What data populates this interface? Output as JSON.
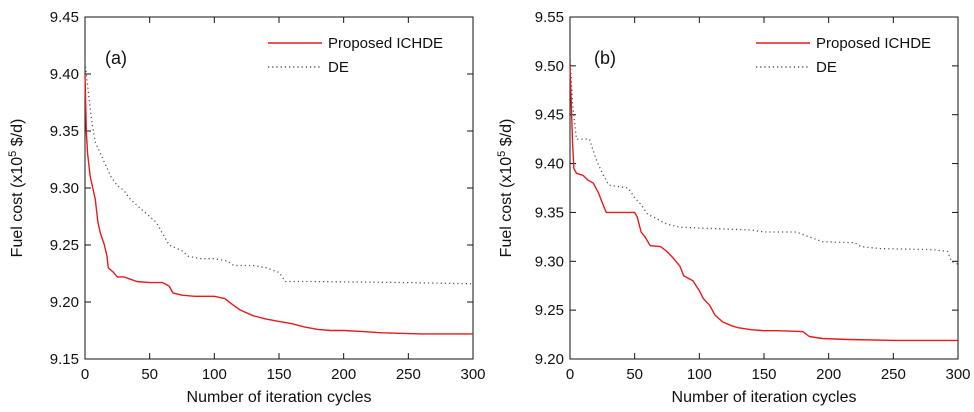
{
  "chart_data": [
    {
      "type": "line",
      "panel_label": "(a)",
      "xlabel": "Number of iteration cycles",
      "ylabel_main": "Fuel cost (x10",
      "ylabel_sup": "5",
      "ylabel_tail": " $/d)",
      "xlim": [
        0,
        300
      ],
      "ylim": [
        9.15,
        9.45
      ],
      "xticks": [
        0,
        50,
        100,
        150,
        200,
        250,
        300
      ],
      "yticks": [
        9.15,
        9.2,
        9.25,
        9.3,
        9.35,
        9.4,
        9.45
      ],
      "ytick_labels": [
        "9.15",
        "9.20",
        "9.25",
        "9.30",
        "9.35",
        "9.40",
        "9.45"
      ],
      "grid": false,
      "legend_position": "top-right",
      "series": [
        {
          "name": "Proposed ICHDE",
          "color": "#e8191b",
          "style": "solid",
          "points": [
            [
              0,
              9.4
            ],
            [
              1,
              9.35
            ],
            [
              2,
              9.33
            ],
            [
              4,
              9.31
            ],
            [
              6,
              9.3
            ],
            [
              8,
              9.29
            ],
            [
              10,
              9.27
            ],
            [
              12,
              9.26
            ],
            [
              15,
              9.25
            ],
            [
              17,
              9.24
            ],
            [
              18,
              9.23
            ],
            [
              20,
              9.228
            ],
            [
              22,
              9.226
            ],
            [
              25,
              9.222
            ],
            [
              30,
              9.222
            ],
            [
              35,
              9.22
            ],
            [
              40,
              9.218
            ],
            [
              50,
              9.217
            ],
            [
              60,
              9.217
            ],
            [
              65,
              9.214
            ],
            [
              68,
              9.208
            ],
            [
              75,
              9.206
            ],
            [
              85,
              9.205
            ],
            [
              100,
              9.205
            ],
            [
              108,
              9.203
            ],
            [
              115,
              9.197
            ],
            [
              120,
              9.193
            ],
            [
              130,
              9.188
            ],
            [
              140,
              9.185
            ],
            [
              150,
              9.183
            ],
            [
              160,
              9.181
            ],
            [
              170,
              9.178
            ],
            [
              180,
              9.176
            ],
            [
              190,
              9.175
            ],
            [
              200,
              9.175
            ],
            [
              215,
              9.174
            ],
            [
              230,
              9.173
            ],
            [
              260,
              9.172
            ],
            [
              300,
              9.172
            ]
          ]
        },
        {
          "name": "DE",
          "color": "#555555",
          "style": "dotted",
          "points": [
            [
              0,
              9.41
            ],
            [
              3,
              9.38
            ],
            [
              5,
              9.36
            ],
            [
              8,
              9.34
            ],
            [
              12,
              9.33
            ],
            [
              16,
              9.32
            ],
            [
              20,
              9.31
            ],
            [
              25,
              9.302
            ],
            [
              30,
              9.298
            ],
            [
              35,
              9.29
            ],
            [
              40,
              9.285
            ],
            [
              50,
              9.275
            ],
            [
              55,
              9.27
            ],
            [
              60,
              9.26
            ],
            [
              65,
              9.25
            ],
            [
              75,
              9.245
            ],
            [
              80,
              9.24
            ],
            [
              90,
              9.238
            ],
            [
              100,
              9.238
            ],
            [
              110,
              9.236
            ],
            [
              115,
              9.232
            ],
            [
              130,
              9.232
            ],
            [
              140,
              9.23
            ],
            [
              150,
              9.226
            ],
            [
              155,
              9.218
            ],
            [
              175,
              9.218
            ],
            [
              250,
              9.217
            ],
            [
              300,
              9.216
            ]
          ]
        }
      ]
    },
    {
      "type": "line",
      "panel_label": "(b)",
      "xlabel": "Number of iteration cycles",
      "ylabel_main": "Fuel cost (x10",
      "ylabel_sup": "5",
      "ylabel_tail": " $/d)",
      "xlim": [
        0,
        300
      ],
      "ylim": [
        9.2,
        9.55
      ],
      "xticks": [
        0,
        50,
        100,
        150,
        200,
        250,
        300
      ],
      "yticks": [
        9.2,
        9.25,
        9.3,
        9.35,
        9.4,
        9.45,
        9.5,
        9.55
      ],
      "ytick_labels": [
        "9.20",
        "9.25",
        "9.30",
        "9.35",
        "9.40",
        "9.45",
        "9.50",
        "9.55"
      ],
      "grid": false,
      "legend_position": "top-right",
      "series": [
        {
          "name": "Proposed ICHDE",
          "color": "#e8191b",
          "style": "solid",
          "points": [
            [
              0,
              9.5
            ],
            [
              1,
              9.46
            ],
            [
              2,
              9.42
            ],
            [
              3,
              9.395
            ],
            [
              5,
              9.39
            ],
            [
              10,
              9.388
            ],
            [
              14,
              9.383
            ],
            [
              18,
              9.38
            ],
            [
              22,
              9.37
            ],
            [
              25,
              9.36
            ],
            [
              28,
              9.35
            ],
            [
              40,
              9.35
            ],
            [
              50,
              9.35
            ],
            [
              52,
              9.345
            ],
            [
              55,
              9.33
            ],
            [
              58,
              9.325
            ],
            [
              62,
              9.316
            ],
            [
              70,
              9.315
            ],
            [
              75,
              9.31
            ],
            [
              80,
              9.303
            ],
            [
              85,
              9.295
            ],
            [
              88,
              9.285
            ],
            [
              95,
              9.28
            ],
            [
              100,
              9.27
            ],
            [
              103,
              9.262
            ],
            [
              108,
              9.255
            ],
            [
              112,
              9.245
            ],
            [
              118,
              9.238
            ],
            [
              125,
              9.234
            ],
            [
              130,
              9.232
            ],
            [
              140,
              9.23
            ],
            [
              150,
              9.229
            ],
            [
              160,
              9.229
            ],
            [
              180,
              9.228
            ],
            [
              185,
              9.223
            ],
            [
              195,
              9.221
            ],
            [
              215,
              9.22
            ],
            [
              250,
              9.219
            ],
            [
              300,
              9.219
            ]
          ]
        },
        {
          "name": "DE",
          "color": "#555555",
          "style": "dotted",
          "points": [
            [
              0,
              9.51
            ],
            [
              2,
              9.46
            ],
            [
              5,
              9.425
            ],
            [
              15,
              9.425
            ],
            [
              20,
              9.405
            ],
            [
              25,
              9.39
            ],
            [
              30,
              9.378
            ],
            [
              45,
              9.375
            ],
            [
              50,
              9.365
            ],
            [
              55,
              9.358
            ],
            [
              60,
              9.348
            ],
            [
              65,
              9.345
            ],
            [
              75,
              9.338
            ],
            [
              85,
              9.335
            ],
            [
              100,
              9.334
            ],
            [
              120,
              9.333
            ],
            [
              140,
              9.332
            ],
            [
              150,
              9.33
            ],
            [
              175,
              9.33
            ],
            [
              185,
              9.325
            ],
            [
              195,
              9.32
            ],
            [
              220,
              9.319
            ],
            [
              225,
              9.315
            ],
            [
              240,
              9.313
            ],
            [
              280,
              9.312
            ],
            [
              292,
              9.31
            ],
            [
              295,
              9.3
            ],
            [
              300,
              9.297
            ]
          ]
        }
      ]
    }
  ]
}
